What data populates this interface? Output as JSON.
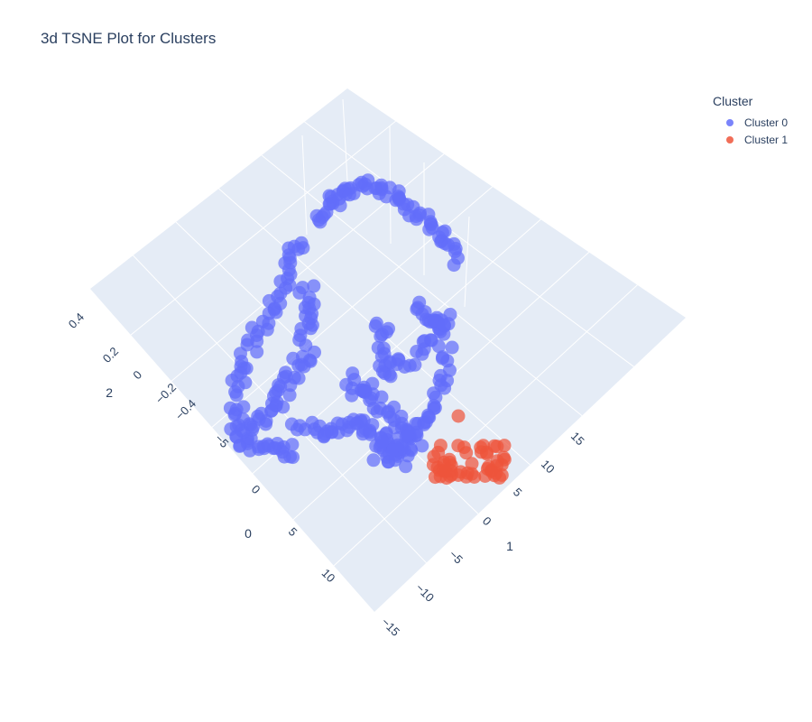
{
  "chart_data": {
    "type": "scatter",
    "title": "3d TSNE Plot for Clusters",
    "legend": {
      "title": "Cluster",
      "position": "top-right"
    },
    "series": [
      {
        "name": "Cluster 0",
        "color": "#636efa"
      },
      {
        "name": "Cluster 1",
        "color": "#ef553b"
      }
    ],
    "axes": {
      "x": {
        "title": "0",
        "ticks": [
          "−5",
          "0",
          "5",
          "10"
        ]
      },
      "y": {
        "title": "1",
        "ticks": [
          "15",
          "10",
          "5",
          "0",
          "−5",
          "−10",
          "−15"
        ]
      },
      "z": {
        "title": "2",
        "ticks": [
          "0.4",
          "0.2",
          "0",
          "−0.2",
          "−0.4"
        ]
      }
    },
    "grid": true
  }
}
